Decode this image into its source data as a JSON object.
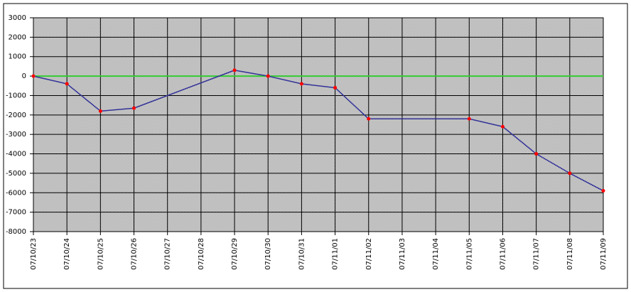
{
  "chart_data": {
    "type": "line",
    "categories": [
      "07/10/23",
      "07/10/24",
      "07/10/25",
      "07/10/26",
      "07/10/27",
      "07/10/28",
      "07/10/29",
      "07/10/30",
      "07/10/31",
      "07/11/01",
      "07/11/02",
      "07/11/03",
      "07/11/04",
      "07/11/05",
      "07/11/06",
      "07/11/07",
      "07/11/08",
      "07/11/09"
    ],
    "series": [
      {
        "color": "#333399",
        "marker_color": "#ff0000",
        "values": [
          0,
          -400,
          -1800,
          -1650,
          null,
          null,
          300,
          0,
          -400,
          -600,
          -2200,
          null,
          null,
          -2200,
          -2600,
          -4000,
          -5000,
          -5900
        ]
      }
    ],
    "ylim": [
      -8000,
      3000
    ],
    "yticks": [
      -8000,
      -7000,
      -6000,
      -5000,
      -4000,
      -3000,
      -2000,
      -1000,
      0,
      1000,
      2000,
      3000
    ],
    "grid": true,
    "zero_line_color": "#33cc33"
  }
}
